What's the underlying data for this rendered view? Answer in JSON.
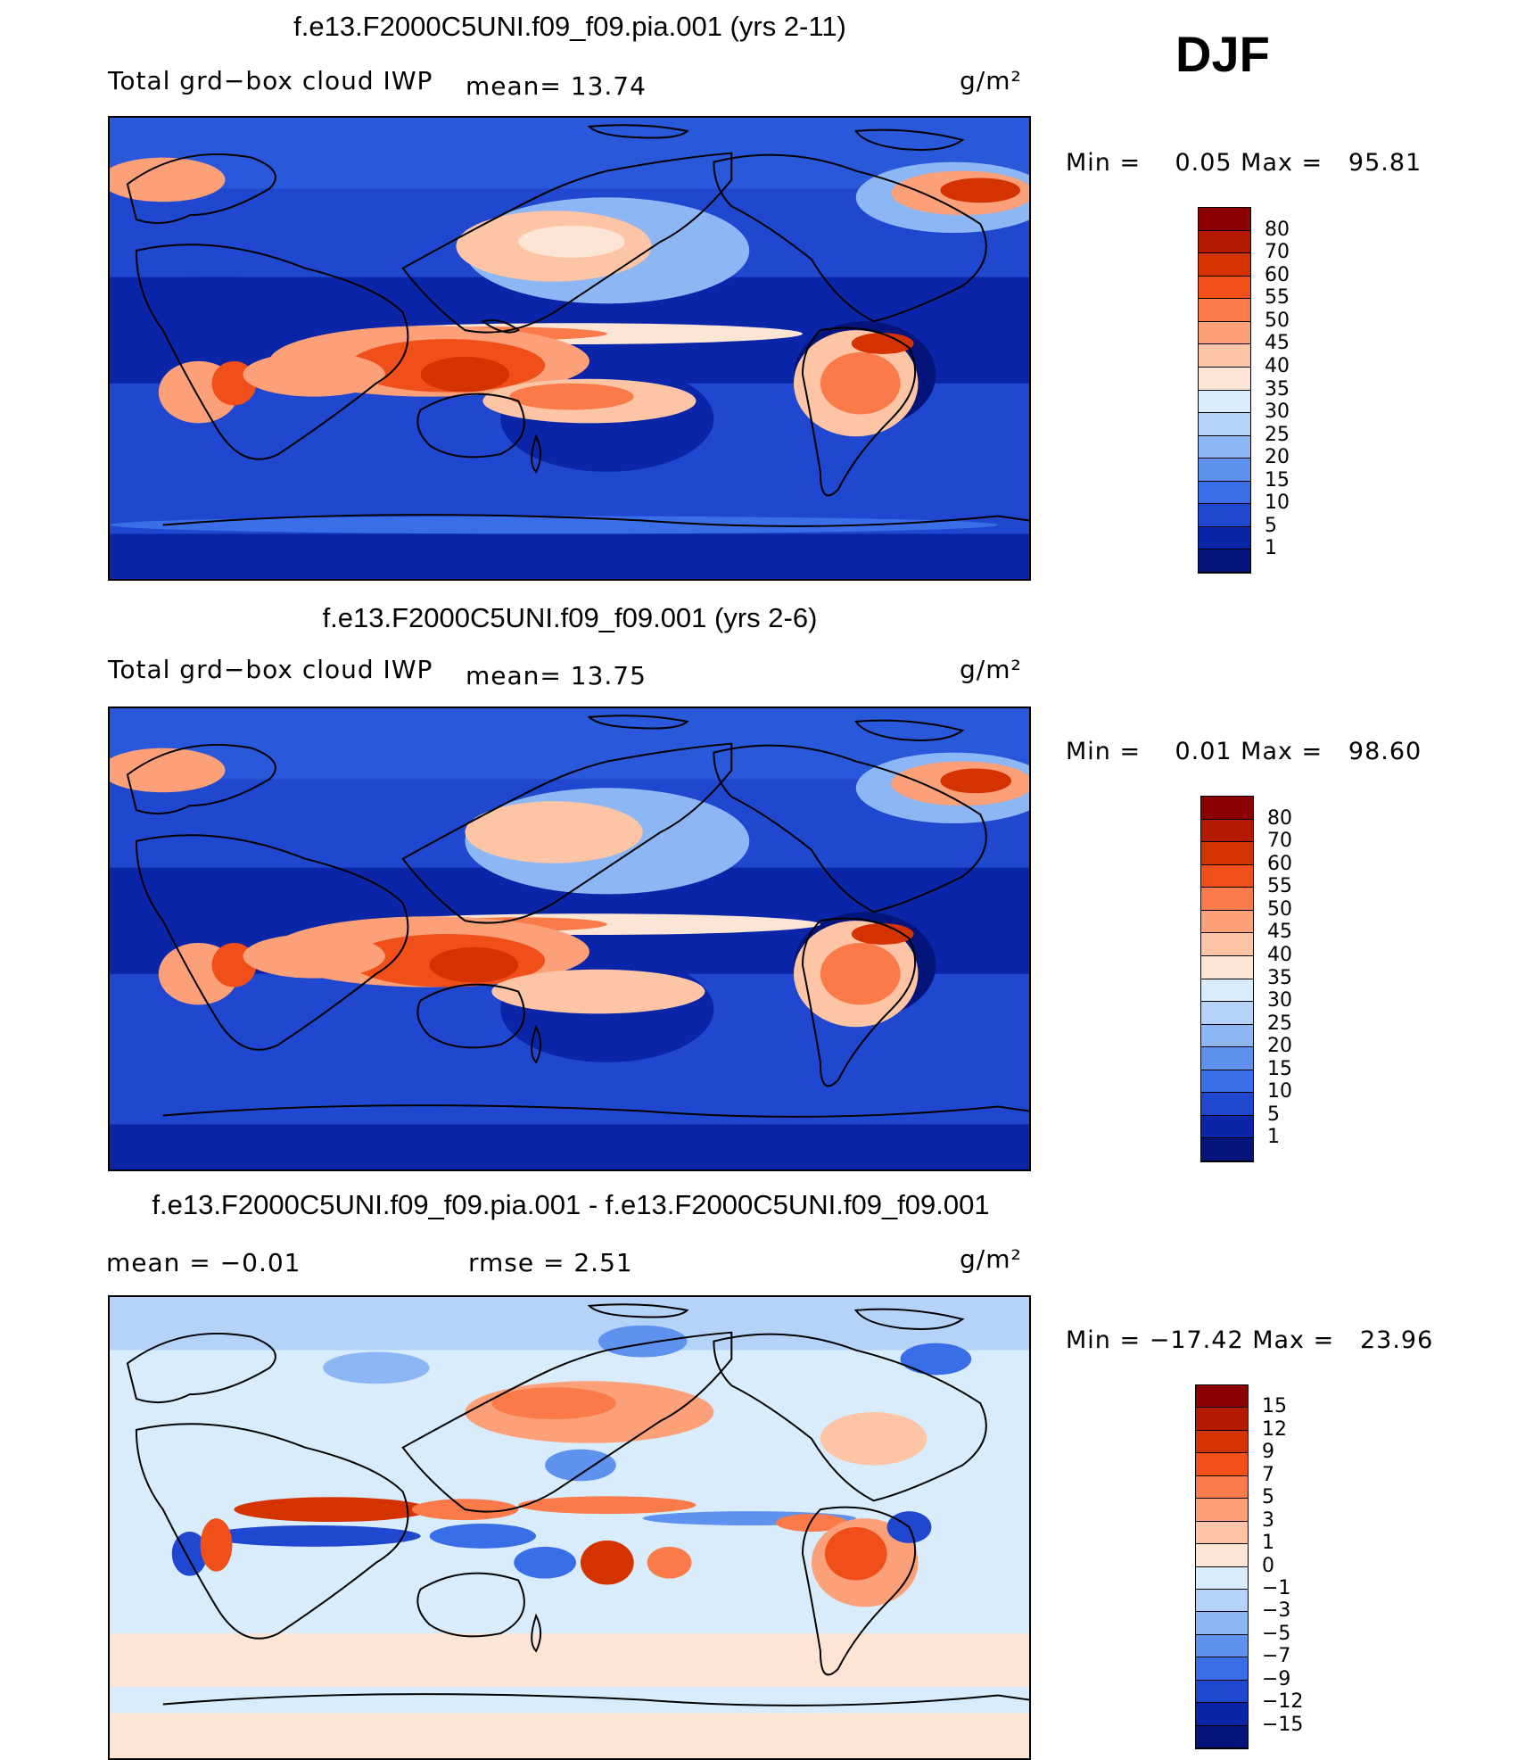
{
  "season": "DJF",
  "units": "g/m²",
  "panels": [
    {
      "id": "case",
      "title": "f.e13.F2000C5UNI.f09_f09.pia.001 (yrs 2-11)",
      "left_label": "Total grd−box cloud IWP",
      "mid_label": "mean=   13.74",
      "units": "g/m²",
      "minmax": "Min =    0.05 Max =   95.81",
      "colorbar": {
        "labels": [
          "80",
          "70",
          "60",
          "55",
          "50",
          "45",
          "40",
          "35",
          "30",
          "25",
          "20",
          "15",
          "10",
          "5",
          "1"
        ],
        "colors": [
          "#8B0000",
          "#B31A00",
          "#D43300",
          "#F04F1A",
          "#FA7A4A",
          "#FCA07A",
          "#FDC5A5",
          "#FDE5D5",
          "#D8ECFB",
          "#B5D3F8",
          "#8DB6F4",
          "#5F92EE",
          "#3A6EE8",
          "#1F47CF",
          "#0A25A8",
          "#04147A"
        ]
      }
    },
    {
      "id": "control",
      "title": "f.e13.F2000C5UNI.f09_f09.001 (yrs 2-6)",
      "left_label": "Total grd−box cloud IWP",
      "mid_label": "mean=   13.75",
      "units": "g/m²",
      "minmax": "Min =    0.01 Max =   98.60",
      "colorbar": {
        "labels": [
          "80",
          "70",
          "60",
          "55",
          "50",
          "45",
          "40",
          "35",
          "30",
          "25",
          "20",
          "15",
          "10",
          "5",
          "1"
        ],
        "colors": [
          "#8B0000",
          "#B31A00",
          "#D43300",
          "#F04F1A",
          "#FA7A4A",
          "#FCA07A",
          "#FDC5A5",
          "#FDE5D5",
          "#D8ECFB",
          "#B5D3F8",
          "#8DB6F4",
          "#5F92EE",
          "#3A6EE8",
          "#1F47CF",
          "#0A25A8",
          "#04147A"
        ]
      }
    },
    {
      "id": "difference",
      "title": "f.e13.F2000C5UNI.f09_f09.pia.001 - f.e13.F2000C5UNI.f09_f09.001",
      "left_label": "mean =   −0.01",
      "mid_label": "rmse =    2.51",
      "units": "g/m²",
      "minmax": "Min = −17.42 Max =   23.96",
      "colorbar": {
        "labels": [
          "15",
          "12",
          "9",
          "7",
          "5",
          "3",
          "1",
          "0",
          "−1",
          "−3",
          "−5",
          "−7",
          "−9",
          "−12",
          "−15"
        ],
        "colors": [
          "#8B0000",
          "#B31A00",
          "#D43300",
          "#F04F1A",
          "#FA7A4A",
          "#FCA07A",
          "#FDC5A5",
          "#FDE5D5",
          "#D8ECFB",
          "#B5D3F8",
          "#8DB6F4",
          "#5F92EE",
          "#3A6EE8",
          "#1F47CF",
          "#0A25A8",
          "#04147A"
        ]
      }
    }
  ]
}
